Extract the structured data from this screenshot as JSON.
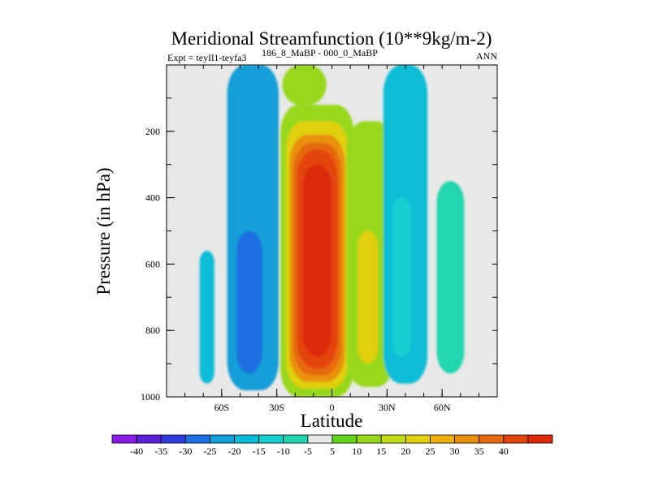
{
  "chart_data": {
    "type": "heatmap",
    "title": "Meridional Streamfunction (10**9kg/m-2)",
    "subtitle_left": "Expt = teyIl1-teyfa3",
    "subtitle_mid": "186_8_MaBP - 000_0_MaBP",
    "subtitle_right": "ANN",
    "xlabel": "Latitude",
    "ylabel": "Pressure (in hPa)",
    "xlim": [
      -90,
      90
    ],
    "ylim": [
      1000,
      0
    ],
    "x_ticks": [
      {
        "value": -60,
        "label": "60S"
      },
      {
        "value": -30,
        "label": "30S"
      },
      {
        "value": 0,
        "label": "0"
      },
      {
        "value": 30,
        "label": "30N"
      },
      {
        "value": 60,
        "label": "60N"
      }
    ],
    "y_ticks": [
      {
        "value": 200,
        "label": "200"
      },
      {
        "value": 400,
        "label": "400"
      },
      {
        "value": 600,
        "label": "600"
      },
      {
        "value": 800,
        "label": "800"
      },
      {
        "value": 1000,
        "label": "1000"
      }
    ],
    "colorbar": {
      "colors": [
        "#8a1ae6",
        "#5a1fd6",
        "#2f3ce0",
        "#1b6fe0",
        "#149ed8",
        "#0bbcd6",
        "#16cfcf",
        "#22d6b0",
        "#e8e8e8",
        "#62d51c",
        "#98d81c",
        "#c2dc18",
        "#e0d010",
        "#ecb00c",
        "#e9900d",
        "#e66a0e",
        "#e4440e",
        "#dd2a0b"
      ],
      "labels": [
        "-40",
        "-35",
        "-30",
        "-25",
        "-20",
        "-15",
        "-10",
        "-5",
        "5",
        "10",
        "15",
        "20",
        "25",
        "30",
        "35",
        "40"
      ]
    },
    "regions": [
      {
        "name": "sh-polar-cell",
        "x": [
          -72,
          -64
        ],
        "p": [
          560,
          960
        ],
        "level": 5
      },
      {
        "name": "sh-ferrel-cell-outer",
        "x": [
          -57,
          -29
        ],
        "p": [
          0,
          980
        ],
        "level": 4
      },
      {
        "name": "sh-ferrel-cell-core",
        "x": [
          -52,
          -38
        ],
        "p": [
          500,
          930
        ],
        "level": 3
      },
      {
        "name": "upper-positive-band",
        "x": [
          -27,
          -3
        ],
        "p": [
          0,
          120
        ],
        "level": 10
      },
      {
        "name": "hadley-cell-l10",
        "x": [
          -28,
          12
        ],
        "p": [
          120,
          1000
        ],
        "level": 10
      },
      {
        "name": "hadley-cell-l12",
        "x": [
          -25,
          9
        ],
        "p": [
          170,
          975
        ],
        "level": 12
      },
      {
        "name": "hadley-cell-l14",
        "x": [
          -23,
          7
        ],
        "p": [
          210,
          955
        ],
        "level": 14
      },
      {
        "name": "hadley-cell-l15",
        "x": [
          -21,
          5
        ],
        "p": [
          235,
          935
        ],
        "level": 15
      },
      {
        "name": "hadley-cell-l16",
        "x": [
          -19,
          3
        ],
        "p": [
          255,
          915
        ],
        "level": 16
      },
      {
        "name": "hadley-cell-core",
        "x": [
          -16,
          0
        ],
        "p": [
          300,
          880
        ],
        "level": 17
      },
      {
        "name": "nh-subsidiary-cell",
        "x": [
          8,
          34
        ],
        "p": [
          170,
          970
        ],
        "level": 10
      },
      {
        "name": "nh-subsidiary-cell-core",
        "x": [
          14,
          25
        ],
        "p": [
          500,
          900
        ],
        "level": 12
      },
      {
        "name": "nh-ferrel-cell",
        "x": [
          28,
          52
        ],
        "p": [
          0,
          960
        ],
        "level": 5
      },
      {
        "name": "nh-ferrel-cell-core",
        "x": [
          33,
          43
        ],
        "p": [
          400,
          880
        ],
        "level": 6
      },
      {
        "name": "nh-outer-cell",
        "x": [
          57,
          72
        ],
        "p": [
          350,
          930
        ],
        "level": 7
      }
    ]
  }
}
